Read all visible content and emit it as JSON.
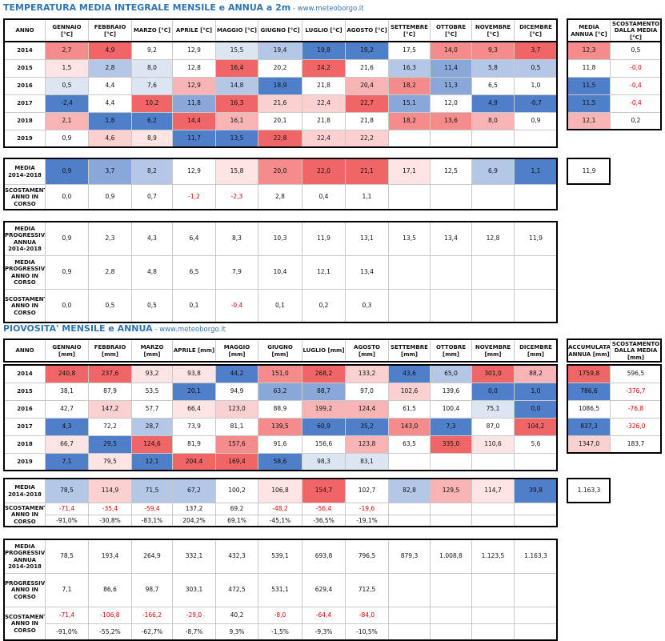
{
  "temp": {
    "title": "TEMPERATURA MEDIA INTEGRALE MENSILE e ANNUA a 2m",
    "site": " - www.meteoborgo.it",
    "header": [
      "ANNO",
      "GENNAIO [°C]",
      "FEBBRAIO [°C]",
      "MARZO [°C]",
      "APRILE [°C]",
      "MAGGIO [°C]",
      "GIUGNO [°C]",
      "LUGLIO [°C]",
      "AGOSTO [°C]",
      "SETTEMBRE [°C]",
      "OTTOBRE [°C]",
      "NOVEMBRE [°C]",
      "DICEMBRE [°C]"
    ],
    "side_header": [
      "MEDIA ANNUA [°C]",
      "SCOSTAMENTO DALLA MEDIA [°C]"
    ],
    "years": [
      {
        "label": "2014",
        "cells": [
          "2,7",
          "4,9",
          "9,2",
          "12,9",
          "15,5",
          "19,4",
          "19,8",
          "19,2",
          "17,5",
          "14,0",
          "9,3",
          "3,7"
        ],
        "colors": [
          "#f48c8c",
          "#f06666",
          "#ffffff",
          "#ffffff",
          "#dde5f2",
          "#b4c7e7",
          "#4f7fc8",
          "#4f7fc8",
          "#ffffff",
          "#f48c8c",
          "#f48c8c",
          "#f06666"
        ],
        "side": [
          "12,3",
          "0,5"
        ],
        "side_colors": [
          "#f48c8c",
          "#ffffff"
        ]
      },
      {
        "label": "2015",
        "cells": [
          "1,5",
          "2,8",
          "8,0",
          "12,8",
          "16,4",
          "20,2",
          "24,2",
          "21,6",
          "16,3",
          "11,4",
          "5,8",
          "0,5"
        ],
        "colors": [
          "#fde4e4",
          "#b4c7e7",
          "#dde5f2",
          "#ffffff",
          "#f06666",
          "#ffffff",
          "#f06666",
          "#ffffff",
          "#b4c7e7",
          "#89a7d8",
          "#b4c7e7",
          "#b4c7e7"
        ],
        "side": [
          "11,8",
          "-0,0"
        ],
        "side_colors": [
          "#ffffff",
          "#ffffff"
        ]
      },
      {
        "label": "2016",
        "cells": [
          "0,5",
          "4,4",
          "7,6",
          "12,9",
          "14,8",
          "18,9",
          "21,8",
          "20,4",
          "18,2",
          "11,3",
          "6,5",
          "1,0"
        ],
        "colors": [
          "#dde5f2",
          "#ffffff",
          "#dde5f2",
          "#f8b4b4",
          "#b4c7e7",
          "#4f7fc8",
          "#ffffff",
          "#f8b4b4",
          "#f48c8c",
          "#89a7d8",
          "#ffffff",
          "#ffffff"
        ],
        "side": [
          "11,5",
          "-0,4"
        ],
        "side_colors": [
          "#4f7fc8",
          "#ffffff"
        ]
      },
      {
        "label": "2017",
        "cells": [
          "-2,4",
          "4,4",
          "10,2",
          "11,8",
          "16,3",
          "21,6",
          "22,4",
          "22,7",
          "15,1",
          "12,0",
          "4,9",
          "-0,7"
        ],
        "colors": [
          "#4f7fc8",
          "#ffffff",
          "#f06666",
          "#89a7d8",
          "#f06666",
          "#fbd0d0",
          "#fbd0d0",
          "#f06666",
          "#89a7d8",
          "#ffffff",
          "#4f7fc8",
          "#4f7fc8"
        ],
        "side": [
          "11,5",
          "-0,4"
        ],
        "side_colors": [
          "#4f7fc8",
          "#ffffff"
        ]
      },
      {
        "label": "2018",
        "cells": [
          "2,1",
          "1,8",
          "6,2",
          "14,4",
          "16,1",
          "20,1",
          "21,8",
          "21,8",
          "18,2",
          "13,6",
          "8,0",
          "0,9"
        ],
        "colors": [
          "#f8b4b4",
          "#4f7fc8",
          "#4f7fc8",
          "#f06666",
          "#f8b4b4",
          "#ffffff",
          "#ffffff",
          "#ffffff",
          "#f48c8c",
          "#f48c8c",
          "#f8b4b4",
          "#ffffff"
        ],
        "side": [
          "12,1",
          "0,2"
        ],
        "side_colors": [
          "#f8b4b4",
          "#ffffff"
        ]
      },
      {
        "label": "2019",
        "cells": [
          "0,9",
          "4,6",
          "8,9",
          "11,7",
          "13,5",
          "22,8",
          "22,4",
          "22,2",
          "",
          "",
          "",
          ""
        ],
        "colors": [
          "#ffffff",
          "#fbd0d0",
          "#fde4e4",
          "#4f7fc8",
          "#4f7fc8",
          "#f06666",
          "#fbd0d0",
          "#fbd0d0",
          "#ffffff",
          "#ffffff",
          "#ffffff",
          "#ffffff"
        ]
      }
    ],
    "media": {
      "label": "MEDIA 2014-2018",
      "cells": [
        "0,9",
        "3,7",
        "8,2",
        "12,9",
        "15,8",
        "20,0",
        "22,0",
        "21,1",
        "17,1",
        "12,5",
        "6,9",
        "1,1"
      ],
      "colors": [
        "#4f7fc8",
        "#89a7d8",
        "#b4c7e7",
        "#ffffff",
        "#fde4e4",
        "#f48c8c",
        "#f06666",
        "#f06666",
        "#fde4e4",
        "#ffffff",
        "#b4c7e7",
        "#4f7fc8"
      ],
      "side": "11,9"
    },
    "scost": {
      "label": "SCOSTAMENTO ANNO IN CORSO",
      "cells": [
        "0,0",
        "0,9",
        "0,7",
        "-1,2",
        "-2,3",
        "2,8",
        "0,4",
        "1,1",
        "",
        "",
        "",
        ""
      ]
    },
    "prog": [
      {
        "label": "MEDIA PROGRESSIVA ANNUA 2014-2018",
        "cells": [
          "0,9",
          "2,3",
          "4,3",
          "6,4",
          "8,3",
          "10,3",
          "11,9",
          "13,1",
          "13,5",
          "13,4",
          "12,8",
          "11,9"
        ]
      },
      {
        "label": "MEDIA PROGRESSIVA ANNO IN CORSO",
        "cells": [
          "0,9",
          "2,8",
          "4,8",
          "6,5",
          "7,9",
          "10,4",
          "12,1",
          "13,4",
          "",
          "",
          "",
          ""
        ]
      },
      {
        "label": "SCOSTAMENTO ANNO IN CORSO",
        "cells": [
          "0,0",
          "0,5",
          "0,5",
          "0,1",
          "-0,4",
          "0,1",
          "0,2",
          "0,3",
          "",
          "",
          "",
          ""
        ]
      }
    ]
  },
  "rain": {
    "title": "PIOVOSITA' MENSILE e ANNUA",
    "site": " - www.meteoborgo.it",
    "header": [
      "ANNO",
      "GENNAIO [mm]",
      "FEBBRAIO [mm]",
      "MARZO [mm]",
      "APRILE [mm]",
      "MAGGIO [mm]",
      "GIUGNO [mm]",
      "LUGLIO [mm]",
      "AGOSTO [mm]",
      "SETTEMBRE [mm]",
      "OTTOBRE [mm]",
      "NOVEMBRE [mm]",
      "DICEMBRE [mm]"
    ],
    "side_header": [
      "ACCUMULATA ANNUA [mm]",
      "SCOSTAMENTO DALLA MEDIA [mm]"
    ],
    "years": [
      {
        "label": "2014",
        "cells": [
          "240,8",
          "237,6",
          "93,2",
          "93,8",
          "44,2",
          "151,0",
          "268,2",
          "133,2",
          "43,6",
          "65,0",
          "301,0",
          "88,2"
        ],
        "colors": [
          "#f06666",
          "#f06666",
          "#fde4e4",
          "#fde4e4",
          "#4f7fc8",
          "#f48c8c",
          "#f06666",
          "#fbd0d0",
          "#4f7fc8",
          "#b4c7e7",
          "#f06666",
          "#f8b4b4"
        ],
        "side": [
          "1759,8",
          "596,5"
        ],
        "side_colors": [
          "#f06666",
          "#ffffff"
        ]
      },
      {
        "label": "2015",
        "cells": [
          "38,1",
          "87,9",
          "53,5",
          "20,1",
          "94,9",
          "63,2",
          "88,7",
          "97,0",
          "102,6",
          "139,6",
          "0,0",
          "1,0"
        ],
        "colors": [
          "#ffffff",
          "#ffffff",
          "#ffffff",
          "#4f7fc8",
          "#ffffff",
          "#89a7d8",
          "#89a7d8",
          "#ffffff",
          "#fbd0d0",
          "#ffffff",
          "#4f7fc8",
          "#4f7fc8"
        ],
        "side": [
          "786,6",
          "-376,7"
        ],
        "side_colors": [
          "#4f7fc8",
          "#ffffff"
        ]
      },
      {
        "label": "2016",
        "cells": [
          "42,7",
          "147,2",
          "57,7",
          "66,4",
          "123,0",
          "88,9",
          "199,2",
          "124,4",
          "61,5",
          "100,4",
          "75,1",
          "0,0"
        ],
        "colors": [
          "#ffffff",
          "#fbd0d0",
          "#ffffff",
          "#fde4e4",
          "#fbd0d0",
          "#ffffff",
          "#f8b4b4",
          "#f8b4b4",
          "#ffffff",
          "#ffffff",
          "#dde5f2",
          "#4f7fc8"
        ],
        "side": [
          "1086,5",
          "-76,8"
        ],
        "side_colors": [
          "#ffffff",
          "#ffffff"
        ]
      },
      {
        "label": "2017",
        "cells": [
          "4,3",
          "72,2",
          "28,7",
          "73,9",
          "81,1",
          "139,5",
          "60,9",
          "35,2",
          "143,0",
          "7,3",
          "87,0",
          "104,2"
        ],
        "colors": [
          "#4f7fc8",
          "#ffffff",
          "#b4c7e7",
          "#ffffff",
          "#ffffff",
          "#f48c8c",
          "#4f7fc8",
          "#4f7fc8",
          "#f48c8c",
          "#4f7fc8",
          "#ffffff",
          "#f06666"
        ],
        "side": [
          "837,3",
          "-326,0"
        ],
        "side_colors": [
          "#4f7fc8",
          "#ffffff"
        ]
      },
      {
        "label": "2018",
        "cells": [
          "66,7",
          "29,5",
          "124,6",
          "81,9",
          "157,6",
          "91,6",
          "156,6",
          "123,8",
          "63,5",
          "335,0",
          "110,6",
          "5,6"
        ],
        "colors": [
          "#fde4e4",
          "#4f7fc8",
          "#f06666",
          "#ffffff",
          "#f48c8c",
          "#ffffff",
          "#ffffff",
          "#f8b4b4",
          "#ffffff",
          "#f06666",
          "#fde4e4",
          "#ffffff"
        ],
        "side": [
          "1347,0",
          "183,7"
        ],
        "side_colors": [
          "#fbd0d0",
          "#ffffff"
        ]
      },
      {
        "label": "2019",
        "cells": [
          "7,1",
          "79,5",
          "12,1",
          "204,4",
          "169,4",
          "58,6",
          "98,3",
          "83,1",
          "",
          "",
          "",
          ""
        ],
        "colors": [
          "#4f7fc8",
          "#fde4e4",
          "#4f7fc8",
          "#f06666",
          "#f06666",
          "#4f7fc8",
          "#dde5f2",
          "#dde5f2",
          "#ffffff",
          "#ffffff",
          "#ffffff",
          "#ffffff"
        ]
      }
    ],
    "media": {
      "label": "MEDIA 2014-2018",
      "cells": [
        "78,5",
        "114,9",
        "71,5",
        "67,2",
        "100,2",
        "106,8",
        "154,7",
        "102,7",
        "82,8",
        "129,5",
        "114,7",
        "39,8"
      ],
      "colors": [
        "#b4c7e7",
        "#fbd0d0",
        "#b4c7e7",
        "#b4c7e7",
        "#ffffff",
        "#fde4e4",
        "#f06666",
        "#ffffff",
        "#b4c7e7",
        "#f8b4b4",
        "#fde4e4",
        "#4f7fc8"
      ],
      "side": "1.163,3"
    },
    "scost": {
      "label": "SCOSTAMENTO ANNO IN CORSO",
      "cells": [
        "-71,4",
        "-35,4",
        "-59,4",
        "137,2",
        "69,2",
        "-48,2",
        "-56,4",
        "-19,6",
        "",
        "",
        "",
        ""
      ],
      "pct": [
        "-91,0%",
        "-30,8%",
        "-83,1%",
        "204,2%",
        "69,1%",
        "-45,1%",
        "-36,5%",
        "-19,1%",
        "",
        "",
        "",
        ""
      ]
    },
    "prog": [
      {
        "label": "MEDIA PROGRESSIVA ANNUA 2014-2018",
        "cells": [
          "78,5",
          "193,4",
          "264,9",
          "332,1",
          "432,3",
          "539,1",
          "693,8",
          "796,5",
          "879,3",
          "1.008,8",
          "1.123,5",
          "1.163,3"
        ]
      },
      {
        "label": "PROGRESSIVA ANNO IN CORSO",
        "cells": [
          "7,1",
          "86,6",
          "98,7",
          "303,1",
          "472,5",
          "531,1",
          "629,4",
          "712,5",
          "",
          "",
          "",
          ""
        ]
      },
      {
        "label": "SCOSTAMENTO ANNO IN CORSO",
        "cells": [
          "-71,4",
          "-106,8",
          "-166,2",
          "-29,0",
          "40,2",
          "-8,0",
          "-64,4",
          "-84,0",
          "",
          "",
          "",
          ""
        ],
        "pct": [
          "-91,0%",
          "-55,2%",
          "-62,7%",
          "-8,7%",
          "9,3%",
          "-1,5%",
          "-9,3%",
          "-10,5%",
          "",
          "",
          "",
          ""
        ]
      }
    ]
  }
}
